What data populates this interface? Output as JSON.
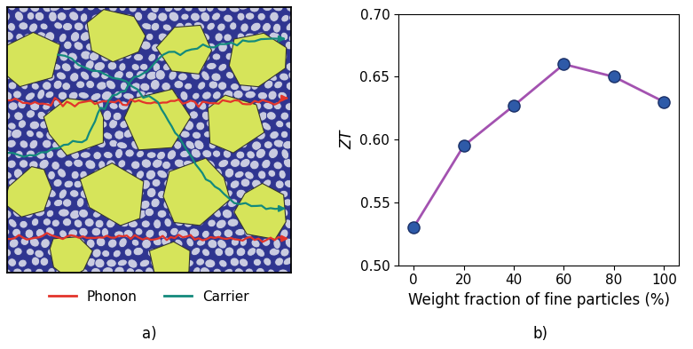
{
  "diagram": {
    "legend": [
      {
        "name": "Phonon",
        "color": "#e3342b"
      },
      {
        "name": "Carrier",
        "color": "#138a7c"
      }
    ]
  },
  "panel_labels": [
    "a)",
    "b)"
  ],
  "chart_data": {
    "type": "line",
    "xlabel": "Weight fraction of fine particles (%)",
    "ylabel": "ZT",
    "x": [
      0,
      20,
      40,
      60,
      80,
      100
    ],
    "series": [
      {
        "type": "line",
        "color": "#a352b0",
        "line_style": "solid",
        "values": [
          0.53,
          0.595,
          0.627,
          0.66,
          0.65,
          0.63
        ]
      },
      {
        "type": "scatter",
        "color": "#2e5aa8",
        "marker": "circle",
        "values": [
          0.53,
          0.595,
          0.627,
          0.66,
          0.65,
          0.63
        ]
      }
    ],
    "xlim": [
      -6,
      106
    ],
    "xticks": [
      0,
      20,
      40,
      60,
      80,
      100
    ],
    "ylim": [
      0.5,
      0.7
    ],
    "yticks": [
      {
        "value": 0.5,
        "label": "0.50"
      },
      {
        "value": 0.55,
        "label": "0.55"
      },
      {
        "value": 0.6,
        "label": "0.60"
      },
      {
        "value": 0.65,
        "label": "0.65"
      },
      {
        "value": 0.7,
        "label": "0.70"
      }
    ]
  }
}
